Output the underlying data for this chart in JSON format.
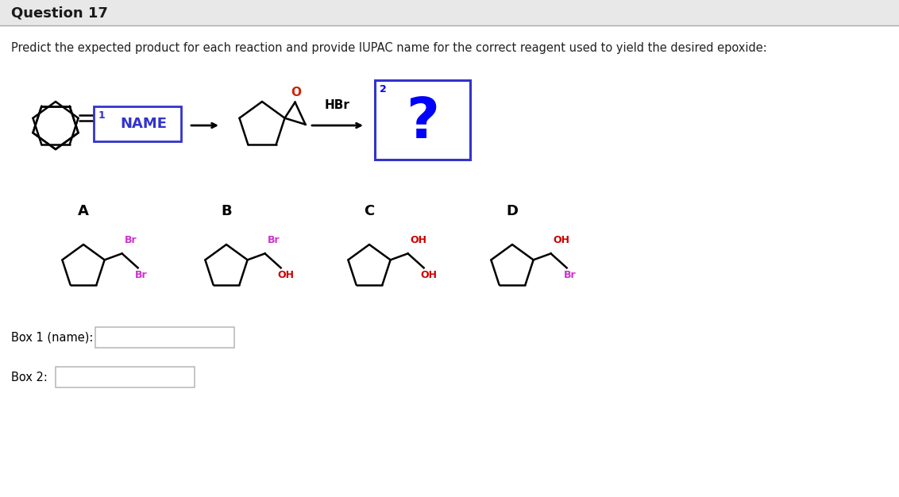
{
  "title": "Question 17",
  "subtitle": "Predict the expected product for each reaction and provide IUPAC name for the correct reagent used to yield the desired epoxide:",
  "header_bar_color": "#e8e8e8",
  "header_text_color": "#1a1a1a",
  "background_color": "#ffffff",
  "box1_label": "1",
  "box1_text": "NAME",
  "box1_border_color": "#3333cc",
  "box1_text_color": "#3333cc",
  "box2_label": "2",
  "box2_text": "?",
  "box2_border_color": "#3333cc",
  "box2_text_color": "#0000ff",
  "hbr_label": "HBr",
  "section_labels": [
    "A",
    "B",
    "C",
    "D"
  ],
  "br_color": "#cc33cc",
  "oh_color": "#cc0000",
  "oxygen_color": "#cc2200",
  "box1_answer_label": "Box 1 (name):",
  "box2_answer_label": "Box 2:",
  "answer_box_color": "#ffffff",
  "answer_box_border": "#bbbbbb",
  "black": "#1a1a1a"
}
